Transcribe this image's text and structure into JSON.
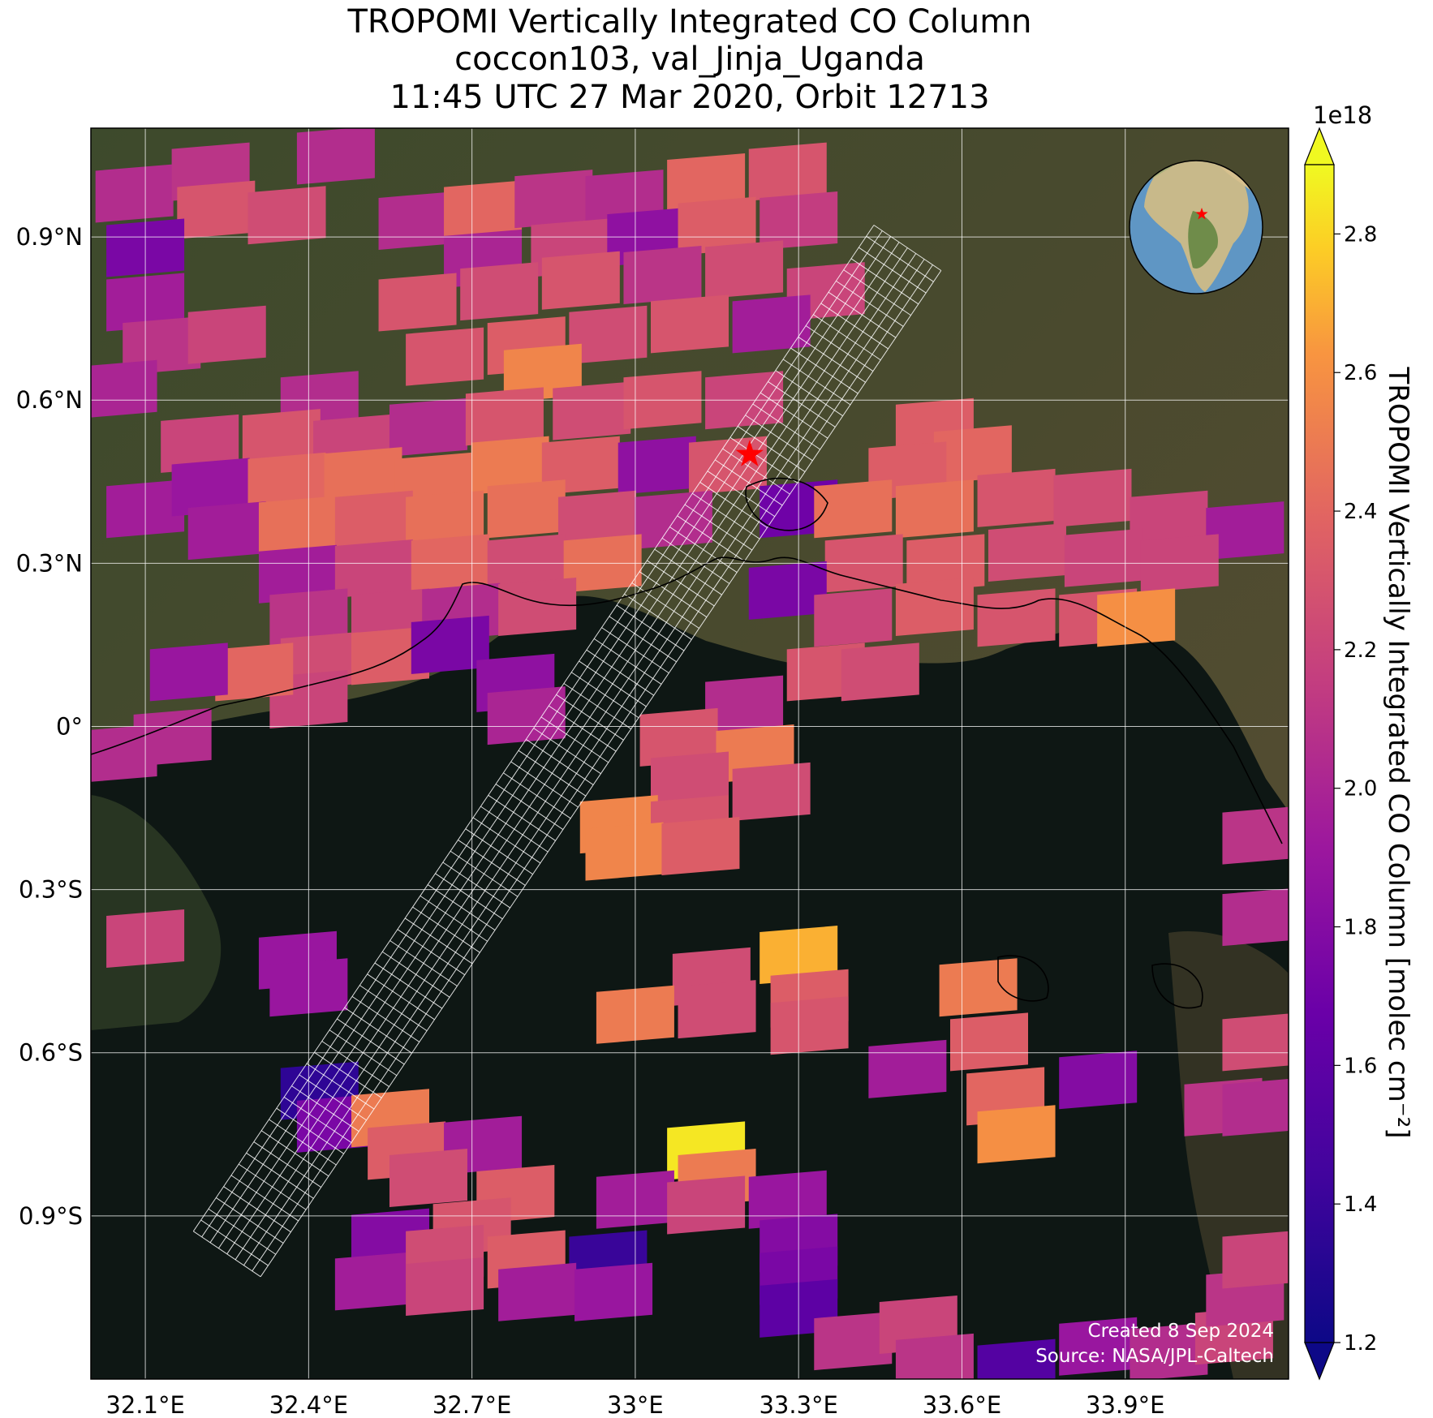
{
  "titles": {
    "line1": "TROPOMI Vertically Integrated CO Column",
    "line2": "coccon103, val_Jinja_Uganda",
    "line3": "11:45 UTC 27 Mar 2020, Orbit 12713"
  },
  "map": {
    "lon_range": [
      32.0,
      34.2
    ],
    "lat_range": [
      -1.2,
      1.1
    ],
    "lon_ticks": [
      32.1,
      32.4,
      32.7,
      33.0,
      33.3,
      33.6,
      33.9
    ],
    "lon_labels": [
      "32.1°E",
      "32.4°E",
      "32.7°E",
      "33°E",
      "33.3°E",
      "33.6°E",
      "33.9°E"
    ],
    "lat_ticks": [
      0.9,
      0.6,
      0.3,
      0.0,
      -0.3,
      -0.6,
      -0.9
    ],
    "lat_labels": [
      "0.9°N",
      "0.6°N",
      "0.3°N",
      "0°",
      "0.3°S",
      "0.6°S",
      "0.9°S"
    ],
    "gridlines": true,
    "basemap": "satellite imagery",
    "site_marker": {
      "lon": 33.21,
      "lat": 0.5,
      "symbol": "star",
      "color": "#ff0000"
    },
    "inset_globe": {
      "placement": "top-right",
      "marker": "star",
      "marker_color": "#ff0000"
    },
    "credits": [
      "Created 8 Sep 2024",
      "Source: NASA/JPL-Caltech"
    ]
  },
  "colorbar": {
    "label": "TROPOMI Vertically Integrated CO Column [molec cm⁻²]",
    "exponent": "1e18",
    "vmin": 1.2,
    "vmax": 2.9,
    "ticks": [
      1.2,
      1.4,
      1.6,
      1.8,
      2.0,
      2.2,
      2.4,
      2.6,
      2.8
    ],
    "tick_labels": [
      "1.2",
      "1.4",
      "1.6",
      "1.8",
      "2.0",
      "2.2",
      "2.4",
      "2.6",
      "2.8"
    ],
    "colormap": "plasma",
    "extend": "both"
  },
  "chart_data": {
    "type": "heatmap",
    "variable": "CO column",
    "units": "molec cm-2 (x1e18)",
    "pixels": [
      {
        "lon": 32.08,
        "lat": 0.98,
        "v": 2.05
      },
      {
        "lon": 32.22,
        "lat": 1.02,
        "v": 2.1
      },
      {
        "lon": 32.23,
        "lat": 0.95,
        "v": 2.3
      },
      {
        "lon": 32.36,
        "lat": 0.94,
        "v": 2.25
      },
      {
        "lon": 32.45,
        "lat": 1.05,
        "v": 2.05
      },
      {
        "lon": 32.1,
        "lat": 0.88,
        "v": 1.75
      },
      {
        "lon": 32.1,
        "lat": 0.78,
        "v": 1.95
      },
      {
        "lon": 32.13,
        "lat": 0.7,
        "v": 2.1
      },
      {
        "lon": 32.25,
        "lat": 0.72,
        "v": 2.2
      },
      {
        "lon": 32.05,
        "lat": 0.62,
        "v": 2.0
      },
      {
        "lon": 32.6,
        "lat": 0.93,
        "v": 2.05
      },
      {
        "lon": 32.72,
        "lat": 0.95,
        "v": 2.4
      },
      {
        "lon": 32.85,
        "lat": 0.97,
        "v": 2.1
      },
      {
        "lon": 32.98,
        "lat": 0.97,
        "v": 2.05
      },
      {
        "lon": 33.13,
        "lat": 1.0,
        "v": 2.4
      },
      {
        "lon": 33.28,
        "lat": 1.02,
        "v": 2.3
      },
      {
        "lon": 32.72,
        "lat": 0.86,
        "v": 2.0
      },
      {
        "lon": 32.88,
        "lat": 0.88,
        "v": 2.2
      },
      {
        "lon": 33.02,
        "lat": 0.9,
        "v": 1.85
      },
      {
        "lon": 33.15,
        "lat": 0.92,
        "v": 2.35
      },
      {
        "lon": 33.3,
        "lat": 0.93,
        "v": 2.15
      },
      {
        "lon": 32.6,
        "lat": 0.78,
        "v": 2.3
      },
      {
        "lon": 32.75,
        "lat": 0.8,
        "v": 2.25
      },
      {
        "lon": 32.9,
        "lat": 0.82,
        "v": 2.3
      },
      {
        "lon": 33.05,
        "lat": 0.83,
        "v": 2.1
      },
      {
        "lon": 33.2,
        "lat": 0.84,
        "v": 2.25
      },
      {
        "lon": 33.35,
        "lat": 0.8,
        "v": 2.2
      },
      {
        "lon": 32.65,
        "lat": 0.68,
        "v": 2.3
      },
      {
        "lon": 32.8,
        "lat": 0.7,
        "v": 2.35
      },
      {
        "lon": 32.95,
        "lat": 0.72,
        "v": 2.25
      },
      {
        "lon": 33.1,
        "lat": 0.74,
        "v": 2.3
      },
      {
        "lon": 33.25,
        "lat": 0.74,
        "v": 1.95
      },
      {
        "lon": 32.83,
        "lat": 0.65,
        "v": 2.55
      },
      {
        "lon": 32.42,
        "lat": 0.6,
        "v": 2.05
      },
      {
        "lon": 32.2,
        "lat": 0.52,
        "v": 2.2
      },
      {
        "lon": 32.35,
        "lat": 0.53,
        "v": 2.3
      },
      {
        "lon": 32.48,
        "lat": 0.52,
        "v": 2.2
      },
      {
        "lon": 32.62,
        "lat": 0.55,
        "v": 2.05
      },
      {
        "lon": 32.76,
        "lat": 0.57,
        "v": 2.3
      },
      {
        "lon": 32.92,
        "lat": 0.58,
        "v": 2.25
      },
      {
        "lon": 33.05,
        "lat": 0.6,
        "v": 2.3
      },
      {
        "lon": 33.2,
        "lat": 0.6,
        "v": 2.2
      },
      {
        "lon": 32.1,
        "lat": 0.4,
        "v": 1.95
      },
      {
        "lon": 32.22,
        "lat": 0.44,
        "v": 1.9
      },
      {
        "lon": 32.36,
        "lat": 0.45,
        "v": 2.4
      },
      {
        "lon": 32.5,
        "lat": 0.46,
        "v": 2.45
      },
      {
        "lon": 32.63,
        "lat": 0.45,
        "v": 2.45
      },
      {
        "lon": 32.77,
        "lat": 0.48,
        "v": 2.5
      },
      {
        "lon": 32.9,
        "lat": 0.48,
        "v": 2.35
      },
      {
        "lon": 33.04,
        "lat": 0.48,
        "v": 1.85
      },
      {
        "lon": 33.17,
        "lat": 0.48,
        "v": 2.3
      },
      {
        "lon": 33.3,
        "lat": 0.4,
        "v": 1.7
      },
      {
        "lon": 32.25,
        "lat": 0.36,
        "v": 1.95
      },
      {
        "lon": 32.38,
        "lat": 0.37,
        "v": 2.45
      },
      {
        "lon": 32.52,
        "lat": 0.38,
        "v": 2.35
      },
      {
        "lon": 32.65,
        "lat": 0.38,
        "v": 2.45
      },
      {
        "lon": 32.8,
        "lat": 0.4,
        "v": 2.45
      },
      {
        "lon": 32.93,
        "lat": 0.38,
        "v": 2.25
      },
      {
        "lon": 33.07,
        "lat": 0.38,
        "v": 2.05
      },
      {
        "lon": 32.38,
        "lat": 0.28,
        "v": 1.95
      },
      {
        "lon": 32.52,
        "lat": 0.29,
        "v": 2.2
      },
      {
        "lon": 32.66,
        "lat": 0.3,
        "v": 2.4
      },
      {
        "lon": 32.8,
        "lat": 0.3,
        "v": 2.25
      },
      {
        "lon": 32.94,
        "lat": 0.3,
        "v": 2.45
      },
      {
        "lon": 32.4,
        "lat": 0.2,
        "v": 2.1
      },
      {
        "lon": 32.55,
        "lat": 0.2,
        "v": 2.2
      },
      {
        "lon": 32.68,
        "lat": 0.21,
        "v": 2.05
      },
      {
        "lon": 32.82,
        "lat": 0.22,
        "v": 2.25
      },
      {
        "lon": 32.42,
        "lat": 0.12,
        "v": 2.25
      },
      {
        "lon": 32.55,
        "lat": 0.13,
        "v": 2.35
      },
      {
        "lon": 32.66,
        "lat": 0.15,
        "v": 1.75
      },
      {
        "lon": 32.4,
        "lat": 0.05,
        "v": 2.2
      },
      {
        "lon": 32.3,
        "lat": 0.1,
        "v": 2.4
      },
      {
        "lon": 32.18,
        "lat": 0.1,
        "v": 1.9
      },
      {
        "lon": 32.78,
        "lat": 0.08,
        "v": 1.85
      },
      {
        "lon": 32.8,
        "lat": 0.02,
        "v": 2.0
      },
      {
        "lon": 32.15,
        "lat": -0.02,
        "v": 2.05
      },
      {
        "lon": 32.05,
        "lat": -0.05,
        "v": 2.05
      },
      {
        "lon": 33.55,
        "lat": 0.55,
        "v": 2.35
      },
      {
        "lon": 33.62,
        "lat": 0.5,
        "v": 2.4
      },
      {
        "lon": 33.5,
        "lat": 0.47,
        "v": 2.35
      },
      {
        "lon": 33.4,
        "lat": 0.4,
        "v": 2.45
      },
      {
        "lon": 33.55,
        "lat": 0.4,
        "v": 2.45
      },
      {
        "lon": 33.7,
        "lat": 0.42,
        "v": 2.3
      },
      {
        "lon": 33.84,
        "lat": 0.42,
        "v": 2.25
      },
      {
        "lon": 33.98,
        "lat": 0.38,
        "v": 2.2
      },
      {
        "lon": 34.12,
        "lat": 0.36,
        "v": 1.95
      },
      {
        "lon": 33.42,
        "lat": 0.3,
        "v": 2.3
      },
      {
        "lon": 33.57,
        "lat": 0.3,
        "v": 2.35
      },
      {
        "lon": 33.72,
        "lat": 0.32,
        "v": 2.25
      },
      {
        "lon": 33.86,
        "lat": 0.31,
        "v": 2.2
      },
      {
        "lon": 34.0,
        "lat": 0.3,
        "v": 2.2
      },
      {
        "lon": 33.28,
        "lat": 0.25,
        "v": 1.75
      },
      {
        "lon": 33.4,
        "lat": 0.2,
        "v": 2.2
      },
      {
        "lon": 33.55,
        "lat": 0.22,
        "v": 2.35
      },
      {
        "lon": 33.7,
        "lat": 0.2,
        "v": 2.3
      },
      {
        "lon": 33.85,
        "lat": 0.2,
        "v": 2.3
      },
      {
        "lon": 33.92,
        "lat": 0.2,
        "v": 2.6
      },
      {
        "lon": 33.35,
        "lat": 0.1,
        "v": 2.3
      },
      {
        "lon": 33.45,
        "lat": 0.1,
        "v": 2.25
      },
      {
        "lon": 33.2,
        "lat": 0.04,
        "v": 2.05
      },
      {
        "lon": 33.08,
        "lat": -0.02,
        "v": 2.3
      },
      {
        "lon": 33.22,
        "lat": -0.05,
        "v": 2.5
      },
      {
        "lon": 33.1,
        "lat": -0.1,
        "v": 2.25
      },
      {
        "lon": 33.25,
        "lat": -0.12,
        "v": 2.25
      },
      {
        "lon": 32.97,
        "lat": -0.18,
        "v": 2.55
      },
      {
        "lon": 33.1,
        "lat": -0.18,
        "v": 2.3
      },
      {
        "lon": 32.98,
        "lat": -0.23,
        "v": 2.55
      },
      {
        "lon": 33.12,
        "lat": -0.22,
        "v": 2.35
      },
      {
        "lon": 32.1,
        "lat": -0.39,
        "v": 2.2
      },
      {
        "lon": 32.38,
        "lat": -0.43,
        "v": 1.9
      },
      {
        "lon": 32.4,
        "lat": -0.48,
        "v": 1.9
      },
      {
        "lon": 33.3,
        "lat": -0.42,
        "v": 2.7
      },
      {
        "lon": 33.14,
        "lat": -0.46,
        "v": 2.25
      },
      {
        "lon": 33.32,
        "lat": -0.5,
        "v": 2.35
      },
      {
        "lon": 33.0,
        "lat": -0.53,
        "v": 2.5
      },
      {
        "lon": 33.15,
        "lat": -0.52,
        "v": 2.25
      },
      {
        "lon": 33.32,
        "lat": -0.55,
        "v": 2.3
      },
      {
        "lon": 33.63,
        "lat": -0.48,
        "v": 2.5
      },
      {
        "lon": 33.65,
        "lat": -0.58,
        "v": 2.35
      },
      {
        "lon": 33.68,
        "lat": -0.68,
        "v": 2.4
      },
      {
        "lon": 33.7,
        "lat": -0.75,
        "v": 2.6
      },
      {
        "lon": 33.5,
        "lat": -0.63,
        "v": 1.95
      },
      {
        "lon": 33.85,
        "lat": -0.65,
        "v": 1.8
      },
      {
        "lon": 34.08,
        "lat": -0.7,
        "v": 2.1
      },
      {
        "lon": 34.15,
        "lat": -0.7,
        "v": 2.05
      },
      {
        "lon": 34.15,
        "lat": -0.58,
        "v": 2.25
      },
      {
        "lon": 32.42,
        "lat": -0.67,
        "v": 1.35
      },
      {
        "lon": 32.45,
        "lat": -0.73,
        "v": 1.75
      },
      {
        "lon": 32.55,
        "lat": -0.72,
        "v": 2.5
      },
      {
        "lon": 32.58,
        "lat": -0.78,
        "v": 2.35
      },
      {
        "lon": 32.72,
        "lat": -0.77,
        "v": 1.95
      },
      {
        "lon": 32.62,
        "lat": -0.83,
        "v": 2.25
      },
      {
        "lon": 33.13,
        "lat": -0.78,
        "v": 2.85
      },
      {
        "lon": 33.15,
        "lat": -0.83,
        "v": 2.5
      },
      {
        "lon": 32.78,
        "lat": -0.86,
        "v": 2.35
      },
      {
        "lon": 32.7,
        "lat": -0.92,
        "v": 2.3
      },
      {
        "lon": 32.55,
        "lat": -0.94,
        "v": 1.8
      },
      {
        "lon": 32.52,
        "lat": -1.02,
        "v": 1.95
      },
      {
        "lon": 32.65,
        "lat": -0.97,
        "v": 2.25
      },
      {
        "lon": 32.8,
        "lat": -0.98,
        "v": 2.35
      },
      {
        "lon": 32.95,
        "lat": -0.98,
        "v": 1.4
      },
      {
        "lon": 32.65,
        "lat": -1.03,
        "v": 2.2
      },
      {
        "lon": 32.82,
        "lat": -1.04,
        "v": 1.95
      },
      {
        "lon": 32.96,
        "lat": -1.04,
        "v": 1.9
      },
      {
        "lon": 33.0,
        "lat": -0.87,
        "v": 1.95
      },
      {
        "lon": 33.13,
        "lat": -0.88,
        "v": 2.2
      },
      {
        "lon": 33.28,
        "lat": -0.87,
        "v": 1.9
      },
      {
        "lon": 33.3,
        "lat": -0.95,
        "v": 1.8
      },
      {
        "lon": 33.3,
        "lat": -1.01,
        "v": 1.75
      },
      {
        "lon": 33.3,
        "lat": -1.07,
        "v": 1.6
      },
      {
        "lon": 33.4,
        "lat": -1.13,
        "v": 2.1
      },
      {
        "lon": 33.52,
        "lat": -1.1,
        "v": 2.2
      },
      {
        "lon": 33.55,
        "lat": -1.17,
        "v": 2.1
      },
      {
        "lon": 33.7,
        "lat": -1.18,
        "v": 1.55
      },
      {
        "lon": 33.85,
        "lat": -1.14,
        "v": 1.9
      },
      {
        "lon": 33.98,
        "lat": -1.15,
        "v": 2.05
      },
      {
        "lon": 34.1,
        "lat": -1.12,
        "v": 2.2
      },
      {
        "lon": 34.12,
        "lat": -1.05,
        "v": 2.1
      },
      {
        "lon": 34.15,
        "lat": -0.98,
        "v": 2.2
      },
      {
        "lon": 34.15,
        "lat": -0.35,
        "v": 2.05
      },
      {
        "lon": 34.15,
        "lat": -0.2,
        "v": 2.1
      }
    ],
    "overlay_footprints": "white outlined retrieval footprint grid along a diagonal swath (NE to SW)"
  }
}
